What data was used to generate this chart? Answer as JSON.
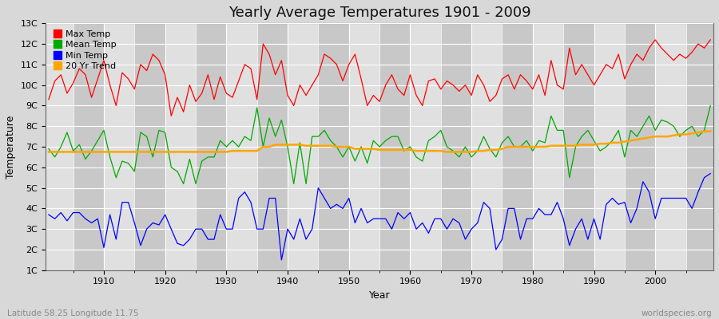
{
  "title": "Yearly Average Temperatures 1901 - 2009",
  "xlabel": "Year",
  "ylabel": "Temperature",
  "bottom_left": "Latitude 58.25 Longitude 11.75",
  "bottom_right": "worldspecies.org",
  "years_start": 1901,
  "years_end": 2009,
  "yticks": [
    1,
    2,
    3,
    4,
    5,
    6,
    7,
    8,
    9,
    10,
    11,
    12,
    13
  ],
  "ylim": [
    1,
    13
  ],
  "xlim": [
    1901,
    2009
  ],
  "bg_color": "#d8d8d8",
  "plot_bg_light": "#e0e0e0",
  "plot_bg_dark": "#c8c8c8",
  "grid_color": "#ffffff",
  "max_temp_color": "#ff0000",
  "mean_temp_color": "#00aa00",
  "min_temp_color": "#0000ff",
  "trend_color": "#ffa500",
  "legend_labels": [
    "Max Temp",
    "Mean Temp",
    "Min Temp",
    "20 Yr Trend"
  ],
  "max_temp": [
    9.3,
    10.2,
    10.5,
    9.6,
    10.1,
    10.8,
    10.5,
    9.4,
    10.3,
    11.2,
    10.0,
    9.0,
    10.6,
    10.3,
    9.8,
    11.0,
    10.7,
    11.5,
    11.2,
    10.5,
    8.5,
    9.4,
    8.7,
    10.0,
    9.2,
    9.6,
    10.5,
    9.3,
    10.4,
    9.6,
    9.4,
    10.2,
    11.0,
    10.8,
    9.3,
    12.0,
    11.5,
    10.5,
    11.2,
    9.5,
    9.0,
    10.0,
    9.5,
    10.0,
    10.5,
    11.5,
    11.3,
    11.0,
    10.2,
    11.0,
    11.5,
    10.3,
    9.0,
    9.5,
    9.2,
    10.0,
    10.5,
    9.8,
    9.5,
    10.5,
    9.5,
    9.0,
    10.2,
    10.3,
    9.8,
    10.2,
    10.0,
    9.7,
    10.0,
    9.5,
    10.5,
    10.0,
    9.2,
    9.5,
    10.3,
    10.5,
    9.8,
    10.5,
    10.2,
    9.8,
    10.5,
    9.5,
    11.2,
    10.0,
    9.8,
    11.8,
    10.5,
    11.0,
    10.5,
    10.0,
    10.5,
    11.0,
    10.8,
    11.5,
    10.3,
    11.0,
    11.5,
    11.2,
    11.8,
    12.2,
    11.8,
    11.5,
    11.2,
    11.5,
    11.3,
    11.6,
    12.0,
    11.8,
    12.2
  ],
  "mean_temp": [
    6.9,
    6.5,
    7.0,
    7.7,
    6.8,
    7.1,
    6.4,
    6.8,
    7.3,
    7.8,
    6.5,
    5.5,
    6.3,
    6.2,
    5.8,
    7.7,
    7.5,
    6.5,
    7.8,
    7.7,
    6.0,
    5.8,
    5.2,
    6.4,
    5.2,
    6.3,
    6.5,
    6.5,
    7.3,
    7.0,
    7.3,
    7.0,
    7.5,
    7.3,
    8.9,
    7.0,
    8.4,
    7.5,
    8.3,
    7.0,
    5.2,
    7.2,
    5.2,
    7.5,
    7.5,
    7.8,
    7.3,
    7.0,
    6.5,
    7.0,
    6.3,
    7.0,
    6.2,
    7.3,
    7.0,
    7.3,
    7.5,
    7.5,
    6.8,
    7.0,
    6.5,
    6.3,
    7.3,
    7.5,
    7.8,
    7.0,
    6.8,
    6.5,
    7.0,
    6.5,
    6.8,
    7.5,
    6.9,
    6.5,
    7.2,
    7.5,
    7.0,
    7.0,
    7.3,
    6.8,
    7.3,
    7.2,
    8.5,
    7.8,
    7.8,
    5.5,
    7.0,
    7.5,
    7.8,
    7.3,
    6.8,
    7.0,
    7.3,
    7.8,
    6.5,
    7.8,
    7.5,
    8.0,
    8.5,
    7.8,
    8.3,
    8.2,
    8.0,
    7.5,
    7.8,
    8.0,
    7.5,
    7.8,
    9.0
  ],
  "min_temp": [
    3.7,
    3.5,
    3.8,
    3.4,
    3.8,
    3.8,
    3.5,
    3.3,
    3.5,
    2.1,
    3.7,
    2.5,
    4.3,
    4.3,
    3.3,
    2.2,
    3.0,
    3.3,
    3.2,
    3.7,
    3.0,
    2.3,
    2.2,
    2.5,
    3.0,
    3.0,
    2.5,
    2.5,
    3.7,
    3.0,
    3.0,
    4.5,
    4.8,
    4.3,
    3.0,
    3.0,
    4.5,
    4.5,
    1.5,
    3.0,
    2.5,
    3.5,
    2.5,
    3.0,
    5.0,
    4.5,
    4.0,
    4.2,
    4.0,
    4.5,
    3.3,
    4.0,
    3.3,
    3.5,
    3.5,
    3.5,
    3.0,
    3.8,
    3.5,
    3.8,
    3.0,
    3.3,
    2.8,
    3.5,
    3.5,
    3.0,
    3.5,
    3.3,
    2.5,
    3.0,
    3.3,
    4.3,
    4.0,
    2.0,
    2.5,
    4.0,
    4.0,
    2.5,
    3.5,
    3.5,
    4.0,
    3.7,
    3.7,
    4.3,
    3.5,
    2.2,
    3.0,
    3.5,
    2.5,
    3.5,
    2.5,
    4.2,
    4.5,
    4.2,
    4.3,
    3.3,
    4.0,
    5.3,
    4.8,
    3.5,
    4.5,
    4.5,
    4.5,
    4.5,
    4.5,
    4.0,
    4.8,
    5.5,
    5.7
  ],
  "trend": [
    6.75,
    6.75,
    6.75,
    6.75,
    6.75,
    6.75,
    6.75,
    6.75,
    6.75,
    6.75,
    6.75,
    6.75,
    6.75,
    6.75,
    6.75,
    6.75,
    6.75,
    6.75,
    6.75,
    6.75,
    6.75,
    6.75,
    6.75,
    6.75,
    6.75,
    6.75,
    6.75,
    6.75,
    6.75,
    6.75,
    6.8,
    6.8,
    6.8,
    6.8,
    6.8,
    7.0,
    7.0,
    7.1,
    7.1,
    7.1,
    7.1,
    7.1,
    7.05,
    7.05,
    7.05,
    7.05,
    7.05,
    7.0,
    7.0,
    7.0,
    6.9,
    6.9,
    6.9,
    6.9,
    6.85,
    6.85,
    6.85,
    6.85,
    6.85,
    6.85,
    6.8,
    6.8,
    6.8,
    6.8,
    6.8,
    6.75,
    6.75,
    6.75,
    6.75,
    6.75,
    6.8,
    6.8,
    6.85,
    6.85,
    6.9,
    7.0,
    7.0,
    7.0,
    7.0,
    7.0,
    7.0,
    7.0,
    7.05,
    7.05,
    7.05,
    7.05,
    7.05,
    7.1,
    7.1,
    7.1,
    7.15,
    7.15,
    7.2,
    7.2,
    7.25,
    7.3,
    7.35,
    7.4,
    7.45,
    7.5,
    7.5,
    7.5,
    7.55,
    7.6,
    7.6,
    7.65,
    7.7,
    7.75,
    7.75
  ]
}
